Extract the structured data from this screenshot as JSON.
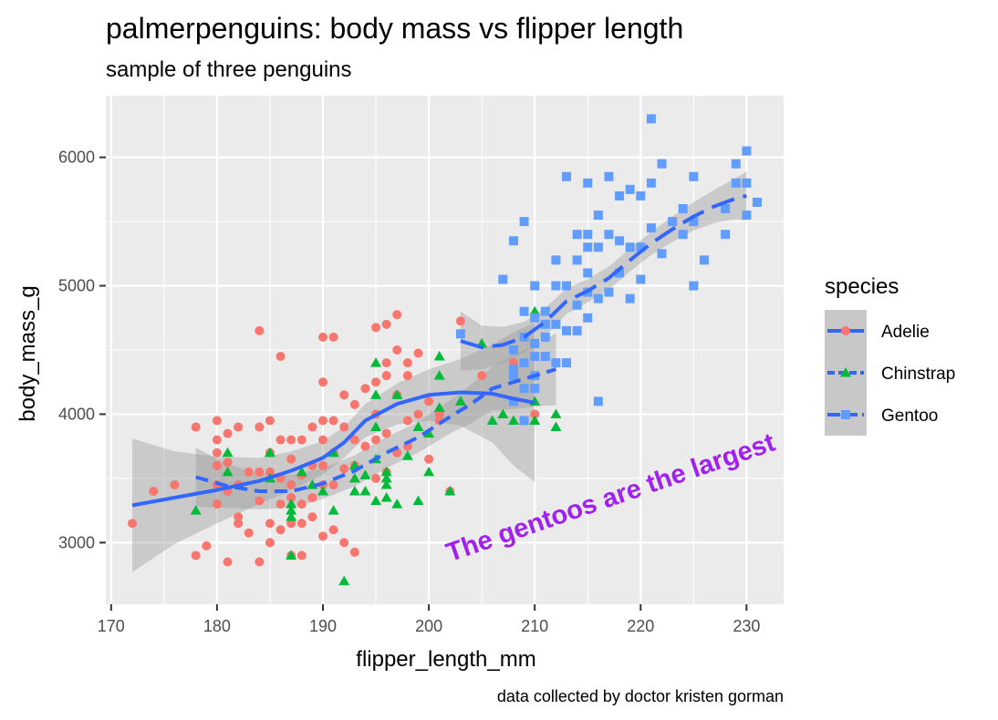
{
  "chart_data": {
    "type": "scatter",
    "title": "palmerpenguins: body mass vs flipper length",
    "subtitle": "sample of three penguins",
    "xlabel": "flipper_length_mm",
    "ylabel": "body_mass_g",
    "caption": "data collected by doctor kristen gorman",
    "xlim": [
      169.5,
      233.5
    ],
    "ylim": [
      2520,
      6480
    ],
    "xticks": [
      170,
      180,
      190,
      200,
      210,
      220,
      230
    ],
    "yticks": [
      3000,
      4000,
      5000,
      6000
    ],
    "xtick_labels": [
      "170",
      "180",
      "190",
      "200",
      "210",
      "220",
      "230"
    ],
    "ytick_labels": [
      "3000",
      "4000",
      "5000",
      "6000"
    ],
    "grid": true,
    "legend": {
      "title": "species",
      "position": "right",
      "entries": [
        "Adelie",
        "Chinstrap",
        "Gentoo"
      ]
    },
    "annotation": {
      "text": "The gentoos are the largest",
      "x": 202,
      "y": 2850,
      "angle_deg": -19,
      "color": "#a020f0"
    },
    "series": [
      {
        "name": "Adelie",
        "color": "#f8766d",
        "marker": "circle",
        "points": [
          [
            172,
            3150
          ],
          [
            174,
            3400
          ],
          [
            176,
            3450
          ],
          [
            178,
            3900
          ],
          [
            178,
            2900
          ],
          [
            179,
            2975
          ],
          [
            180,
            3950
          ],
          [
            180,
            3800
          ],
          [
            180,
            3700
          ],
          [
            180,
            3600
          ],
          [
            180,
            3450
          ],
          [
            180,
            3300
          ],
          [
            181,
            3850
          ],
          [
            181,
            3625
          ],
          [
            181,
            3400
          ],
          [
            181,
            2850
          ],
          [
            182,
            3900
          ],
          [
            182,
            3450
          ],
          [
            182,
            3200
          ],
          [
            182,
            3150
          ],
          [
            183,
            3550
          ],
          [
            183,
            3075
          ],
          [
            184,
            4650
          ],
          [
            184,
            3900
          ],
          [
            184,
            3550
          ],
          [
            184,
            3325
          ],
          [
            184,
            2850
          ],
          [
            185,
            3950
          ],
          [
            185,
            3700
          ],
          [
            185,
            3550
          ],
          [
            185,
            3150
          ],
          [
            185,
            3000
          ],
          [
            186,
            4450
          ],
          [
            186,
            3800
          ],
          [
            186,
            3500
          ],
          [
            186,
            3300
          ],
          [
            186,
            3100
          ],
          [
            187,
            3800
          ],
          [
            187,
            3650
          ],
          [
            187,
            3450
          ],
          [
            187,
            3350
          ],
          [
            187,
            3150
          ],
          [
            187,
            2900
          ],
          [
            188,
            3800
          ],
          [
            188,
            3525
          ],
          [
            188,
            3300
          ],
          [
            188,
            3150
          ],
          [
            188,
            2900
          ],
          [
            189,
            3900
          ],
          [
            189,
            3600
          ],
          [
            189,
            3350
          ],
          [
            189,
            3200
          ],
          [
            190,
            4600
          ],
          [
            190,
            4250
          ],
          [
            190,
            3950
          ],
          [
            190,
            3800
          ],
          [
            190,
            3600
          ],
          [
            190,
            3450
          ],
          [
            190,
            3050
          ],
          [
            191,
            4600
          ],
          [
            191,
            3950
          ],
          [
            191,
            3700
          ],
          [
            191,
            3450
          ],
          [
            191,
            3100
          ],
          [
            192,
            4150
          ],
          [
            192,
            3900
          ],
          [
            192,
            3575
          ],
          [
            192,
            3000
          ],
          [
            193,
            4075
          ],
          [
            193,
            3800
          ],
          [
            193,
            3600
          ],
          [
            193,
            2925
          ],
          [
            194,
            4200
          ],
          [
            194,
            3750
          ],
          [
            195,
            4675
          ],
          [
            195,
            4250
          ],
          [
            195,
            4000
          ],
          [
            195,
            3800
          ],
          [
            195,
            3500
          ],
          [
            196,
            4700
          ],
          [
            196,
            4400
          ],
          [
            196,
            4300
          ],
          [
            196,
            3850
          ],
          [
            196,
            3550
          ],
          [
            197,
            4775
          ],
          [
            197,
            4500
          ],
          [
            197,
            4150
          ],
          [
            197,
            3700
          ],
          [
            198,
            4400
          ],
          [
            198,
            4300
          ],
          [
            198,
            3950
          ],
          [
            198,
            3750
          ],
          [
            199,
            4475
          ],
          [
            199,
            4000
          ],
          [
            200,
            4100
          ],
          [
            200,
            3650
          ],
          [
            201,
            4000
          ],
          [
            201,
            3950
          ],
          [
            202,
            3400
          ],
          [
            203,
            4725
          ],
          [
            205,
            4300
          ],
          [
            208,
            4400
          ],
          [
            210,
            4000
          ]
        ]
      },
      {
        "name": "Chinstrap",
        "color": "#00ba38",
        "marker": "triangle",
        "points": [
          [
            178,
            3250
          ],
          [
            181,
            3700
          ],
          [
            181,
            3550
          ],
          [
            185,
            3700
          ],
          [
            185,
            3500
          ],
          [
            187,
            3300
          ],
          [
            187,
            3250
          ],
          [
            187,
            3200
          ],
          [
            187,
            2900
          ],
          [
            188,
            3550
          ],
          [
            189,
            3450
          ],
          [
            190,
            3400
          ],
          [
            191,
            3250
          ],
          [
            191,
            3700
          ],
          [
            192,
            2700
          ],
          [
            193,
            3500
          ],
          [
            193,
            3400
          ],
          [
            193,
            3600
          ],
          [
            194,
            3525
          ],
          [
            194,
            3400
          ],
          [
            195,
            4400
          ],
          [
            195,
            4150
          ],
          [
            195,
            3900
          ],
          [
            195,
            3650
          ],
          [
            195,
            3325
          ],
          [
            196,
            3550
          ],
          [
            196,
            3500
          ],
          [
            196,
            3450
          ],
          [
            196,
            3350
          ],
          [
            197,
            4150
          ],
          [
            197,
            3300
          ],
          [
            198,
            3675
          ],
          [
            199,
            3900
          ],
          [
            199,
            3325
          ],
          [
            200,
            3850
          ],
          [
            200,
            3550
          ],
          [
            201,
            4450
          ],
          [
            201,
            4300
          ],
          [
            201,
            4050
          ],
          [
            202,
            3400
          ],
          [
            203,
            4100
          ],
          [
            205,
            4550
          ],
          [
            206,
            3950
          ],
          [
            207,
            4000
          ],
          [
            208,
            3950
          ],
          [
            210,
            4800
          ],
          [
            210,
            3950
          ],
          [
            210,
            4100
          ],
          [
            212,
            4000
          ],
          [
            212,
            3900
          ]
        ]
      },
      {
        "name": "Gentoo",
        "color": "#619cff",
        "marker": "square",
        "points": [
          [
            203,
            4625
          ],
          [
            207,
            5050
          ],
          [
            208,
            5350
          ],
          [
            208,
            4500
          ],
          [
            208,
            4350
          ],
          [
            208,
            4300
          ],
          [
            208,
            4100
          ],
          [
            209,
            5500
          ],
          [
            209,
            4800
          ],
          [
            209,
            4600
          ],
          [
            209,
            4400
          ],
          [
            209,
            4200
          ],
          [
            209,
            3950
          ],
          [
            210,
            5000
          ],
          [
            210,
            4750
          ],
          [
            210,
            4550
          ],
          [
            210,
            4450
          ],
          [
            210,
            4300
          ],
          [
            210,
            4200
          ],
          [
            211,
            4800
          ],
          [
            211,
            4700
          ],
          [
            211,
            4600
          ],
          [
            211,
            4450
          ],
          [
            212,
            5200
          ],
          [
            212,
            5000
          ],
          [
            212,
            4700
          ],
          [
            212,
            4400
          ],
          [
            213,
            5850
          ],
          [
            213,
            5000
          ],
          [
            213,
            4650
          ],
          [
            213,
            4400
          ],
          [
            214,
            5400
          ],
          [
            214,
            5200
          ],
          [
            214,
            4850
          ],
          [
            214,
            4650
          ],
          [
            215,
            5800
          ],
          [
            215,
            5400
          ],
          [
            215,
            5300
          ],
          [
            215,
            5100
          ],
          [
            215,
            4950
          ],
          [
            215,
            4750
          ],
          [
            216,
            5550
          ],
          [
            216,
            5300
          ],
          [
            216,
            4900
          ],
          [
            216,
            4100
          ],
          [
            217,
            5850
          ],
          [
            217,
            5400
          ],
          [
            217,
            4950
          ],
          [
            218,
            5700
          ],
          [
            218,
            5350
          ],
          [
            218,
            5100
          ],
          [
            219,
            5750
          ],
          [
            219,
            5300
          ],
          [
            219,
            4900
          ],
          [
            220,
            5700
          ],
          [
            220,
            5300
          ],
          [
            220,
            5050
          ],
          [
            221,
            6300
          ],
          [
            221,
            5800
          ],
          [
            221,
            5450
          ],
          [
            222,
            5950
          ],
          [
            222,
            5250
          ],
          [
            223,
            5500
          ],
          [
            224,
            5600
          ],
          [
            224,
            5400
          ],
          [
            225,
            5850
          ],
          [
            225,
            5500
          ],
          [
            225,
            5000
          ],
          [
            226,
            5200
          ],
          [
            228,
            5600
          ],
          [
            228,
            5400
          ],
          [
            229,
            5950
          ],
          [
            229,
            5800
          ],
          [
            230,
            6050
          ],
          [
            230,
            5800
          ],
          [
            230,
            5550
          ],
          [
            231,
            5650
          ]
        ]
      }
    ],
    "smooths": [
      {
        "name": "Adelie",
        "color": "#3366ff",
        "dash": "solid",
        "curve": [
          [
            172,
            3290
          ],
          [
            176,
            3350
          ],
          [
            180,
            3410
          ],
          [
            184,
            3480
          ],
          [
            187,
            3560
          ],
          [
            190,
            3660
          ],
          [
            192,
            3780
          ],
          [
            194,
            3950
          ],
          [
            197,
            4080
          ],
          [
            200,
            4150
          ],
          [
            203,
            4170
          ],
          [
            206,
            4160
          ],
          [
            208,
            4120
          ],
          [
            210,
            4090
          ]
        ],
        "band_halfwidth": [
          520,
          360,
          260,
          180,
          150,
          130,
          120,
          130,
          160,
          200,
          260,
          380,
          520,
          620
        ]
      },
      {
        "name": "Chinstrap",
        "color": "#3366ff",
        "dash": "dashed",
        "curve": [
          [
            178,
            3510
          ],
          [
            181,
            3440
          ],
          [
            184,
            3400
          ],
          [
            187,
            3400
          ],
          [
            190,
            3460
          ],
          [
            193,
            3560
          ],
          [
            196,
            3700
          ],
          [
            199,
            3820
          ],
          [
            202,
            3980
          ],
          [
            204,
            4080
          ],
          [
            206,
            4200
          ],
          [
            208,
            4250
          ],
          [
            210,
            4300
          ],
          [
            212,
            4350
          ]
        ],
        "band_halfwidth": [
          230,
          170,
          140,
          130,
          120,
          120,
          120,
          120,
          130,
          150,
          170,
          210,
          240,
          280
        ]
      },
      {
        "name": "Gentoo",
        "color": "#3366ff",
        "dash": "longdash",
        "curve": [
          [
            203,
            4570
          ],
          [
            205,
            4520
          ],
          [
            207,
            4540
          ],
          [
            209,
            4600
          ],
          [
            211,
            4720
          ],
          [
            213,
            4880
          ],
          [
            215,
            4960
          ],
          [
            217,
            5060
          ],
          [
            219,
            5200
          ],
          [
            221,
            5330
          ],
          [
            223,
            5440
          ],
          [
            225,
            5540
          ],
          [
            227,
            5620
          ],
          [
            229,
            5680
          ],
          [
            230,
            5700
          ]
        ],
        "band_halfwidth": [
          230,
          170,
          140,
          120,
          110,
          100,
          90,
          90,
          90,
          90,
          100,
          110,
          130,
          160,
          190
        ]
      }
    ]
  }
}
